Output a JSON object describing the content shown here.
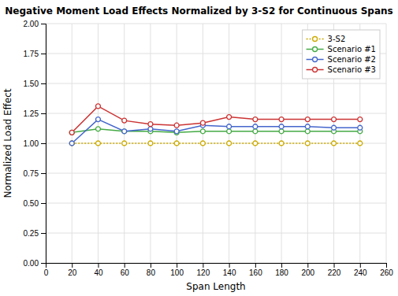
{
  "chart_data": {
    "type": "line",
    "title": "Negative Moment Load Effects Normalized by 3-S2 for Continuous Spans",
    "xlabel": "Span Length",
    "ylabel": "Normalized Load Effect",
    "x": [
      20,
      40,
      60,
      80,
      100,
      120,
      140,
      160,
      180,
      200,
      220,
      240
    ],
    "series": [
      {
        "name": "3-S2",
        "color": "#ccaa00",
        "marker": "circle",
        "line_style": "dotted",
        "values": [
          1.0,
          1.0,
          1.0,
          1.0,
          1.0,
          1.0,
          1.0,
          1.0,
          1.0,
          1.0,
          1.0,
          1.0
        ]
      },
      {
        "name": "Scenario #1",
        "color": "#44aa44",
        "marker": "circle",
        "line_style": "solid",
        "values": [
          1.09,
          1.12,
          1.1,
          1.1,
          1.09,
          1.1,
          1.1,
          1.1,
          1.1,
          1.1,
          1.1,
          1.1
        ]
      },
      {
        "name": "Scenario #2",
        "color": "#4466cc",
        "marker": "circle",
        "line_style": "solid",
        "values": [
          1.0,
          1.2,
          1.1,
          1.12,
          1.1,
          1.15,
          1.14,
          1.14,
          1.14,
          1.14,
          1.13,
          1.13
        ]
      },
      {
        "name": "Scenario #3",
        "color": "#cc3333",
        "marker": "circle",
        "line_style": "solid",
        "values": [
          1.09,
          1.31,
          1.19,
          1.16,
          1.15,
          1.17,
          1.22,
          1.2,
          1.2,
          1.2,
          1.2,
          1.2
        ]
      }
    ],
    "xlim": [
      0,
      260
    ],
    "ylim": [
      0.0,
      2.0
    ],
    "xticks": [
      0,
      20,
      40,
      60,
      80,
      100,
      120,
      140,
      160,
      180,
      200,
      220,
      240,
      260
    ],
    "yticks": [
      {
        "value": 0.0,
        "label": "0.00"
      },
      0.25,
      {
        "value": 0.5,
        "label": "0.50"
      },
      0.75,
      {
        "value": 1.0,
        "label": "1.00"
      },
      1.25,
      {
        "value": 1.5,
        "label": "1.50"
      },
      1.75,
      {
        "value": 2.0,
        "label": "2.00"
      }
    ],
    "grid": true,
    "legend": "upper right"
  }
}
